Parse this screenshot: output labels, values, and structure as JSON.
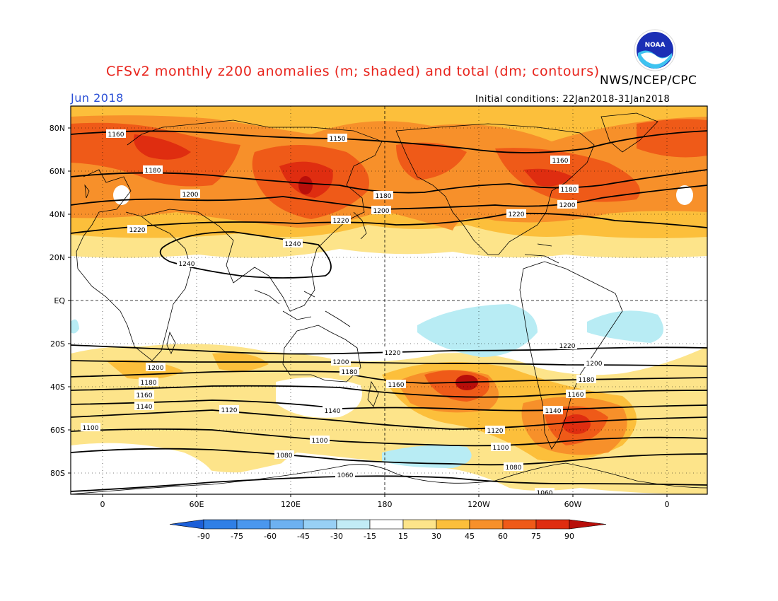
{
  "header": {
    "title": "CFSv2 monthly z200 anomalies (m; shaded) and total (dm; contours)",
    "agency": "NWS/NCEP/CPC",
    "month": "Jun 2018",
    "initial_conditions": "Initial conditions: 22Jan2018-31Jan2018",
    "logo_text": "NOAA"
  },
  "map": {
    "lat_labels": [
      "80N",
      "60N",
      "40N",
      "20N",
      "EQ",
      "20S",
      "40S",
      "60S",
      "80S"
    ],
    "lon_labels": [
      "0",
      "60E",
      "120E",
      "180",
      "120W",
      "60W",
      "0"
    ]
  },
  "contours": [
    {
      "value": 1160,
      "label": "1160"
    },
    {
      "value": 1150,
      "label": "1150"
    },
    {
      "value": 1160,
      "label": "1160"
    },
    {
      "value": 1180,
      "label": "1180"
    },
    {
      "value": 1180,
      "label": "1180"
    },
    {
      "value": 1180,
      "label": "1180"
    },
    {
      "value": 1200,
      "label": "1200"
    },
    {
      "value": 1200,
      "label": "1200"
    },
    {
      "value": 1200,
      "label": "1200"
    },
    {
      "value": 1220,
      "label": "1220"
    },
    {
      "value": 1220,
      "label": "1220"
    },
    {
      "value": 1220,
      "label": "1220"
    },
    {
      "value": 1240,
      "label": "1240"
    },
    {
      "value": 1240,
      "label": "1240"
    },
    {
      "value": 1220,
      "label": "1220"
    },
    {
      "value": 1220,
      "label": "1220"
    },
    {
      "value": 1200,
      "label": "1200"
    },
    {
      "value": 1200,
      "label": "1200"
    },
    {
      "value": 1200,
      "label": "1200"
    },
    {
      "value": 1180,
      "label": "1180"
    },
    {
      "value": 1180,
      "label": "1180"
    },
    {
      "value": 1180,
      "label": "1180"
    },
    {
      "value": 1160,
      "label": "1160"
    },
    {
      "value": 1160,
      "label": "1160"
    },
    {
      "value": 1160,
      "label": "1160"
    },
    {
      "value": 1140,
      "label": "1140"
    },
    {
      "value": 1140,
      "label": "1140"
    },
    {
      "value": 1140,
      "label": "1140"
    },
    {
      "value": 1120,
      "label": "1120"
    },
    {
      "value": 1120,
      "label": "1120"
    },
    {
      "value": 1100,
      "label": "1100"
    },
    {
      "value": 1100,
      "label": "1100"
    },
    {
      "value": 1100,
      "label": "1100"
    },
    {
      "value": 1080,
      "label": "1080"
    },
    {
      "value": 1080,
      "label": "1080"
    },
    {
      "value": 1060,
      "label": "1060"
    },
    {
      "value": 1060,
      "label": "1060"
    }
  ],
  "colorbar": {
    "labels": [
      "-90",
      "-75",
      "-60",
      "-45",
      "-30",
      "-15",
      "15",
      "30",
      "45",
      "60",
      "75",
      "90"
    ],
    "colors": [
      "#1c5fd8",
      "#2f7fe6",
      "#4a97ee",
      "#6db1f1",
      "#98d0f5",
      "#c2ecf6",
      "#ffffff",
      "#fde48a",
      "#fcbf3b",
      "#f7902a",
      "#ef5a18",
      "#df2d10",
      "#b80e0a"
    ]
  },
  "colors": {
    "title": "#e8241c",
    "month": "#2a4fd6",
    "pos1": "#fde48a",
    "pos2": "#fcbf3b",
    "pos3": "#f7902a",
    "pos4": "#ef5a18",
    "pos5": "#df2d10",
    "pos6": "#b80e0a",
    "neg1": "#b8ecf4"
  }
}
